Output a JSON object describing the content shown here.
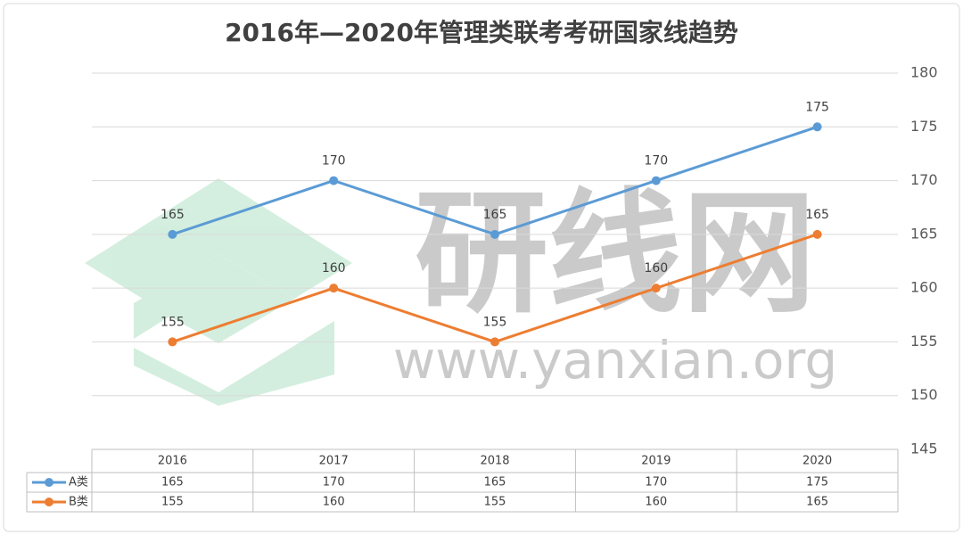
{
  "chart_data": {
    "type": "line",
    "title": "2016年—2020年管理类联考考研国家线趋势",
    "categories": [
      "2016",
      "2017",
      "2018",
      "2019",
      "2020"
    ],
    "series": [
      {
        "name": "A类",
        "color": "#5b9bd5",
        "values": [
          165,
          170,
          165,
          170,
          175
        ]
      },
      {
        "name": "B类",
        "color": "#ed7d31",
        "values": [
          155,
          160,
          155,
          160,
          165
        ]
      }
    ],
    "ylim": [
      145,
      180
    ],
    "yticks": [
      145,
      150,
      155,
      160,
      165,
      170,
      175,
      180
    ],
    "grid": true,
    "y_axis_side": "right",
    "data_labels": true,
    "data_table": true
  },
  "watermark": {
    "name": "研线网",
    "url": "www.yanxian.org"
  }
}
